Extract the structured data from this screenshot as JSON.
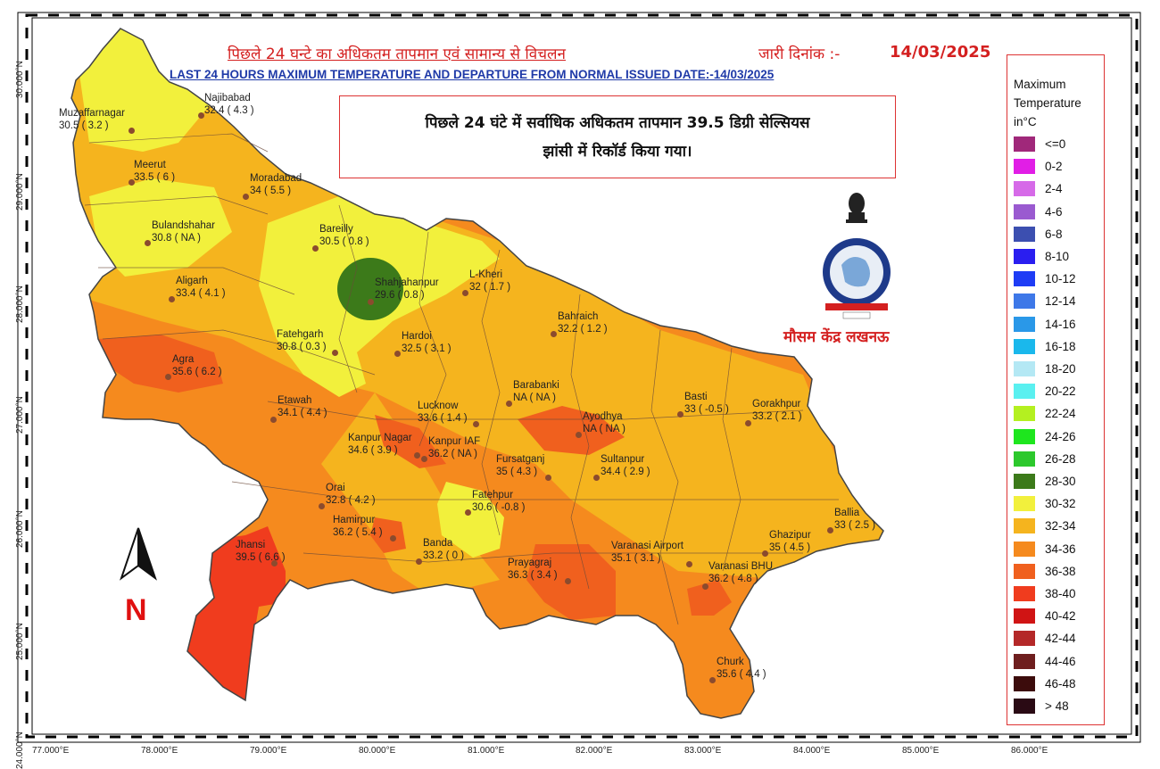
{
  "header": {
    "title_hi": "पिछले 24 घन्टे का अधिकतम तापमान एवं सामान्य से विचलन",
    "issue_label_hi": "जारी दिनांक :-",
    "issue_date": "14/03/2025",
    "title_en": "LAST 24 HOURS MAXIMUM TEMPERATURE AND DEPARTURE FROM NORMAL ISSUED DATE:-14/03/2025"
  },
  "note": {
    "line1": "पिछले 24 घंटे में सर्वाधिक अधिकतम तापमान 39.5 डिग्री सेल्सियस",
    "line2": "झांसी में रिकॉर्ड किया गया।"
  },
  "office": "मौसम केंद्र लखनऊ",
  "north_label": "N",
  "legend": {
    "title": [
      "Maximum",
      "Temperature",
      "in°C"
    ],
    "items": [
      {
        "label": "<=0",
        "color": "#a0287a"
      },
      {
        "label": "0-2",
        "color": "#e11ee6"
      },
      {
        "label": "2-4",
        "color": "#d66ae8"
      },
      {
        "label": "4-6",
        "color": "#9a5ad0"
      },
      {
        "label": "6-8",
        "color": "#3c4fb0"
      },
      {
        "label": "8-10",
        "color": "#2a1ef0"
      },
      {
        "label": "10-12",
        "color": "#1e3cf5"
      },
      {
        "label": "12-14",
        "color": "#3e78e8"
      },
      {
        "label": "14-16",
        "color": "#2a98e8"
      },
      {
        "label": "16-18",
        "color": "#1ab8ec"
      },
      {
        "label": "18-20",
        "color": "#b4e8f4"
      },
      {
        "label": "20-22",
        "color": "#5af0f0"
      },
      {
        "label": "22-24",
        "color": "#b4f020"
      },
      {
        "label": "24-26",
        "color": "#1ee61e"
      },
      {
        "label": "26-28",
        "color": "#2cc82c"
      },
      {
        "label": "28-30",
        "color": "#3c7a1a"
      },
      {
        "label": "30-32",
        "color": "#f2f03c"
      },
      {
        "label": "32-34",
        "color": "#f5b41e"
      },
      {
        "label": "34-36",
        "color": "#f58a1e"
      },
      {
        "label": "36-38",
        "color": "#f0601e"
      },
      {
        "label": "38-40",
        "color": "#f03c1e"
      },
      {
        "label": "40-42",
        "color": "#d01414"
      },
      {
        "label": "42-44",
        "color": "#b42828"
      },
      {
        "label": "44-46",
        "color": "#6e1e1e"
      },
      {
        "label": "46-48",
        "color": "#3c0c0c"
      },
      {
        "label": "> 48",
        "color": "#2a0a14"
      }
    ]
  },
  "axes": {
    "lon_ticks": [
      "77.000°E",
      "78.000°E",
      "79.000°E",
      "80.000°E",
      "81.000°E",
      "82.000°E",
      "83.000°E",
      "84.000°E",
      "85.000°E",
      "86.000°E"
    ],
    "lat_ticks": [
      "30.000°N",
      "29.000°N",
      "28.000°N",
      "27.000°N",
      "26.000°N",
      "25.000°N",
      "24.000°N"
    ]
  },
  "stations": [
    {
      "name": "Najibabad",
      "reading": "32.4 ( 4.3 )"
    },
    {
      "name": "Muzaffarnagar",
      "reading": "30.5 ( 3.2 )"
    },
    {
      "name": "Meerut",
      "reading": "33.5 ( 6 )"
    },
    {
      "name": "Moradabad",
      "reading": "34 ( 5.5 )"
    },
    {
      "name": "Bulandshahar",
      "reading": "30.8 ( NA )"
    },
    {
      "name": "Bareilly",
      "reading": "30.5 ( 0.8 )"
    },
    {
      "name": "Aligarh",
      "reading": "33.4 ( 4.1 )"
    },
    {
      "name": "Shahjahanpur",
      "reading": "29.6 ( 0.8 )"
    },
    {
      "name": "L-Kheri",
      "reading": "32 ( 1.7 )"
    },
    {
      "name": "Bahraich",
      "reading": "32.2 ( 1.2 )"
    },
    {
      "name": "Fatehgarh",
      "reading": "30.8 ( 0.3 )"
    },
    {
      "name": "Hardoi",
      "reading": "32.5 ( 3.1 )"
    },
    {
      "name": "Agra",
      "reading": "35.6 ( 6.2 )"
    },
    {
      "name": "Barabanki",
      "reading": "NA ( NA )"
    },
    {
      "name": "Etawah",
      "reading": "34.1 ( 4.4 )"
    },
    {
      "name": "Lucknow",
      "reading": "33.6 ( 1.4 )"
    },
    {
      "name": "Basti",
      "reading": "33 ( -0.5 )"
    },
    {
      "name": "Gorakhpur",
      "reading": "33.2 ( 2.1 )"
    },
    {
      "name": "Ayodhya",
      "reading": "NA ( NA )"
    },
    {
      "name": "Kanpur Nagar",
      "reading": "34.6 ( 3.9 )"
    },
    {
      "name": "Kanpur IAF",
      "reading": "36.2 ( NA )"
    },
    {
      "name": "Fursatganj",
      "reading": "35 ( 4.3 )"
    },
    {
      "name": "Sultanpur",
      "reading": "34.4 ( 2.9 )"
    },
    {
      "name": "Orai",
      "reading": "32.8 ( 4.2 )"
    },
    {
      "name": "Fatehpur",
      "reading": "30.6 ( -0.8 )"
    },
    {
      "name": "Ballia",
      "reading": "33 ( 2.5 )"
    },
    {
      "name": "Hamirpur",
      "reading": "36.2 ( 5.4 )"
    },
    {
      "name": "Ghazipur",
      "reading": "35 ( 4.5 )"
    },
    {
      "name": "Banda",
      "reading": "33.2 ( 0 )"
    },
    {
      "name": "Varanasi Airport",
      "reading": "35.1 ( 3.1 )"
    },
    {
      "name": "Jhansi",
      "reading": "39.5 ( 6.6 )"
    },
    {
      "name": "Prayagraj",
      "reading": "36.3 ( 3.4 )"
    },
    {
      "name": "Varanasi BHU",
      "reading": "36.2 ( 4.8 )"
    },
    {
      "name": "Churk",
      "reading": "35.6 ( 4.4 )"
    }
  ]
}
